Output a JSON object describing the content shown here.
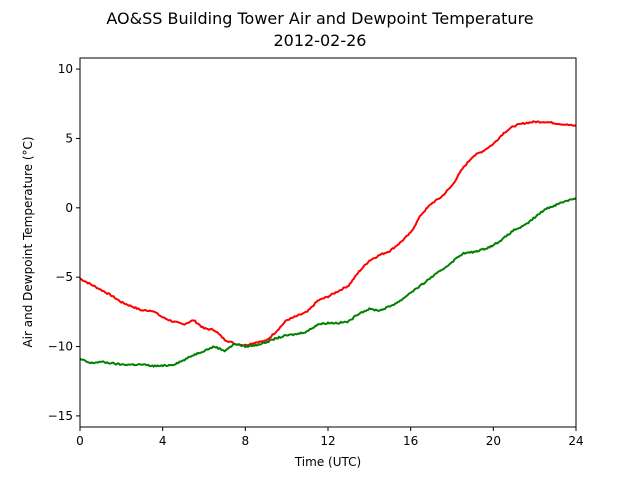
{
  "chart_data": {
    "type": "line",
    "title": "AO&SS Building Tower Air and Dewpoint Temperature",
    "subtitle": "2012-02-26",
    "xlabel": "Time (UTC)",
    "ylabel": "Air and Dewpoint Temperature (°C)",
    "xlim": [
      0,
      24
    ],
    "ylim": [
      -15.8,
      10.8
    ],
    "xticks": [
      0,
      4,
      8,
      12,
      16,
      20,
      24
    ],
    "yticks": [
      -15,
      -10,
      -5,
      0,
      5,
      10
    ],
    "grid": false,
    "legend": "none",
    "series": [
      {
        "color": "#ff0000",
        "points": [
          [
            0,
            -5.1
          ],
          [
            0.5,
            -5.5
          ],
          [
            1,
            -5.9
          ],
          [
            1.5,
            -6.3
          ],
          [
            2,
            -6.8
          ],
          [
            2.5,
            -7.1
          ],
          [
            3,
            -7.4
          ],
          [
            3.5,
            -7.4
          ],
          [
            4,
            -7.9
          ],
          [
            4.5,
            -8.2
          ],
          [
            5,
            -8.4
          ],
          [
            5.5,
            -8.1
          ],
          [
            6,
            -8.7
          ],
          [
            6.5,
            -8.8
          ],
          [
            7,
            -9.5
          ],
          [
            7.5,
            -9.8
          ],
          [
            8,
            -9.9
          ],
          [
            8.5,
            -9.7
          ],
          [
            9,
            -9.6
          ],
          [
            9.5,
            -8.9
          ],
          [
            10,
            -8.1
          ],
          [
            10.5,
            -7.8
          ],
          [
            11,
            -7.5
          ],
          [
            11.5,
            -6.7
          ],
          [
            12,
            -6.4
          ],
          [
            12.5,
            -6.0
          ],
          [
            13,
            -5.6
          ],
          [
            13.5,
            -4.6
          ],
          [
            14,
            -3.8
          ],
          [
            14.5,
            -3.4
          ],
          [
            15,
            -3.1
          ],
          [
            15.5,
            -2.5
          ],
          [
            16,
            -1.8
          ],
          [
            16.5,
            -0.5
          ],
          [
            17,
            0.3
          ],
          [
            17.5,
            0.8
          ],
          [
            18,
            1.6
          ],
          [
            18.5,
            2.8
          ],
          [
            19,
            3.7
          ],
          [
            19.5,
            4.1
          ],
          [
            20,
            4.6
          ],
          [
            20.5,
            5.4
          ],
          [
            21,
            5.9
          ],
          [
            21.5,
            6.1
          ],
          [
            22,
            6.2
          ],
          [
            22.5,
            6.2
          ],
          [
            23,
            6.1
          ],
          [
            23.5,
            6.0
          ],
          [
            24,
            5.9
          ]
        ]
      },
      {
        "color": "#008000",
        "points": [
          [
            0,
            -10.9
          ],
          [
            0.5,
            -11.2
          ],
          [
            1,
            -11.1
          ],
          [
            1.5,
            -11.2
          ],
          [
            2,
            -11.3
          ],
          [
            2.5,
            -11.3
          ],
          [
            3,
            -11.3
          ],
          [
            3.5,
            -11.4
          ],
          [
            4,
            -11.4
          ],
          [
            4.5,
            -11.3
          ],
          [
            5,
            -11.0
          ],
          [
            5.5,
            -10.6
          ],
          [
            6,
            -10.3
          ],
          [
            6.5,
            -10.0
          ],
          [
            7,
            -10.3
          ],
          [
            7.5,
            -9.8
          ],
          [
            8,
            -10.0
          ],
          [
            8.5,
            -9.9
          ],
          [
            9,
            -9.7
          ],
          [
            9.5,
            -9.4
          ],
          [
            10,
            -9.2
          ],
          [
            10.5,
            -9.1
          ],
          [
            11,
            -8.9
          ],
          [
            11.5,
            -8.4
          ],
          [
            12,
            -8.3
          ],
          [
            12.5,
            -8.3
          ],
          [
            13,
            -8.2
          ],
          [
            13.5,
            -7.6
          ],
          [
            14,
            -7.3
          ],
          [
            14.5,
            -7.4
          ],
          [
            15,
            -7.1
          ],
          [
            15.5,
            -6.7
          ],
          [
            16,
            -6.1
          ],
          [
            16.5,
            -5.6
          ],
          [
            17,
            -5.0
          ],
          [
            17.5,
            -4.5
          ],
          [
            18,
            -3.9
          ],
          [
            18.5,
            -3.3
          ],
          [
            19,
            -3.2
          ],
          [
            19.5,
            -3.0
          ],
          [
            20,
            -2.7
          ],
          [
            20.5,
            -2.2
          ],
          [
            21,
            -1.6
          ],
          [
            21.5,
            -1.3
          ],
          [
            22,
            -0.7
          ],
          [
            22.5,
            -0.1
          ],
          [
            23,
            0.2
          ],
          [
            23.5,
            0.5
          ],
          [
            24,
            0.7
          ]
        ]
      }
    ]
  }
}
